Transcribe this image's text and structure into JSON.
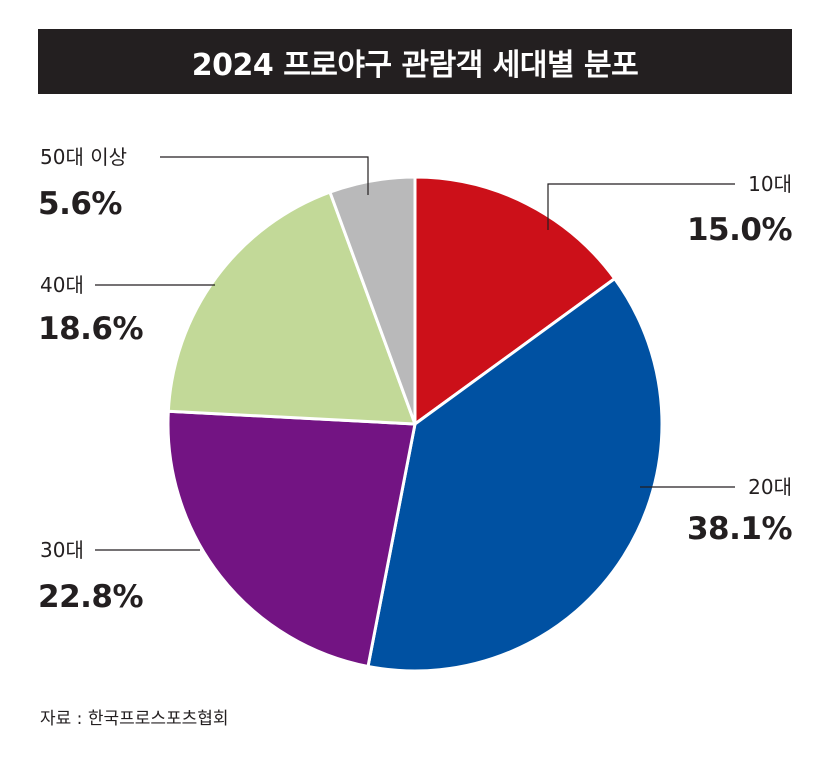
{
  "chart_data": {
    "type": "pie",
    "title": "2024 프로야구 관람객 세대별 분포",
    "start": "12 o'clock, clockwise",
    "slices": [
      {
        "label": "10대",
        "value": 15.0,
        "value_label": "15.0%",
        "color": "#cc1019"
      },
      {
        "label": "20대",
        "value": 38.1,
        "value_label": "38.1%",
        "color": "#0051a2"
      },
      {
        "label": "30대",
        "value": 22.8,
        "value_label": "22.8%",
        "color": "#731483"
      },
      {
        "label": "40대",
        "value": 18.6,
        "value_label": "18.6%",
        "color": "#c2d998"
      },
      {
        "label": "50대 이상",
        "value": 5.6,
        "value_label": "5.6%",
        "color": "#b9b9ba"
      }
    ]
  },
  "source": "자료 : 한국프로스포츠협회"
}
